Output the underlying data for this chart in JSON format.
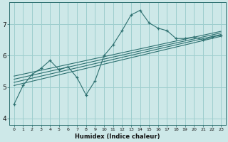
{
  "xlabel": "Humidex (Indice chaleur)",
  "ylabel": "",
  "bg_color": "#cde8e8",
  "grid_color": "#9ecece",
  "line_color": "#2d7070",
  "xlim": [
    -0.5,
    23.5
  ],
  "ylim": [
    3.8,
    7.7
  ],
  "xticks": [
    0,
    1,
    2,
    3,
    4,
    5,
    6,
    7,
    8,
    9,
    10,
    11,
    12,
    13,
    14,
    15,
    16,
    17,
    18,
    19,
    20,
    21,
    22,
    23
  ],
  "yticks": [
    4,
    5,
    6,
    7
  ],
  "main_x": [
    0,
    1,
    2,
    3,
    4,
    5,
    6,
    7,
    8,
    9,
    10,
    11,
    12,
    13,
    14,
    15,
    16,
    17,
    18,
    19,
    20,
    21,
    22,
    23
  ],
  "main_y": [
    4.45,
    5.05,
    5.4,
    5.6,
    5.85,
    5.55,
    5.65,
    5.3,
    4.75,
    5.2,
    6.0,
    6.35,
    6.8,
    7.3,
    7.45,
    7.05,
    6.88,
    6.8,
    6.55,
    6.55,
    6.6,
    6.5,
    6.6,
    6.65
  ],
  "regression_lines": [
    {
      "x": [
        0,
        23
      ],
      "y": [
        5.05,
        6.62
      ]
    },
    {
      "x": [
        0,
        23
      ],
      "y": [
        5.15,
        6.68
      ]
    },
    {
      "x": [
        0,
        23
      ],
      "y": [
        5.25,
        6.73
      ]
    },
    {
      "x": [
        0,
        23
      ],
      "y": [
        5.35,
        6.78
      ]
    }
  ]
}
